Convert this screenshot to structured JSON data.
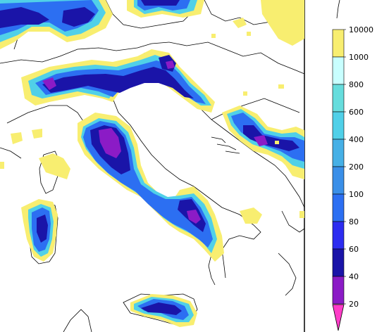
{
  "map": {
    "region": "Italy",
    "projection": "lat-lon",
    "palette": {
      "very_low": "#ff3cc8",
      "low": "#8b1bc6",
      "mid_low": "#1a14a8",
      "mid": "#2c2cf0",
      "mid_high": "#3377ee",
      "high": "#3a8fe8",
      "higher": "#46b0e6",
      "highest": "#50d0e8",
      "top": "#c8ffff",
      "max": "#f8ee70"
    }
  },
  "legend": {
    "ticks": [
      "10000",
      "1000",
      "800",
      "600",
      "400",
      "200",
      "100",
      "80",
      "60",
      "40",
      "20"
    ],
    "bands": [
      {
        "range": "1000-10000",
        "color": "#f8ee70"
      },
      {
        "range": "800-1000",
        "color": "#c8ffff"
      },
      {
        "range": "600-800",
        "color": "#66dddd"
      },
      {
        "range": "400-600",
        "color": "#50d0e8"
      },
      {
        "range": "200-400",
        "color": "#46b0e6"
      },
      {
        "range": "100-200",
        "color": "#3a8fe8"
      },
      {
        "range": "80-100",
        "color": "#2c6ff2"
      },
      {
        "range": "60-80",
        "color": "#2c2cf0"
      },
      {
        "range": "40-60",
        "color": "#1a14a8"
      },
      {
        "range": "20-40",
        "color": "#8b1bc6"
      },
      {
        "range": "<20",
        "color": "#ff3cc8"
      }
    ]
  }
}
